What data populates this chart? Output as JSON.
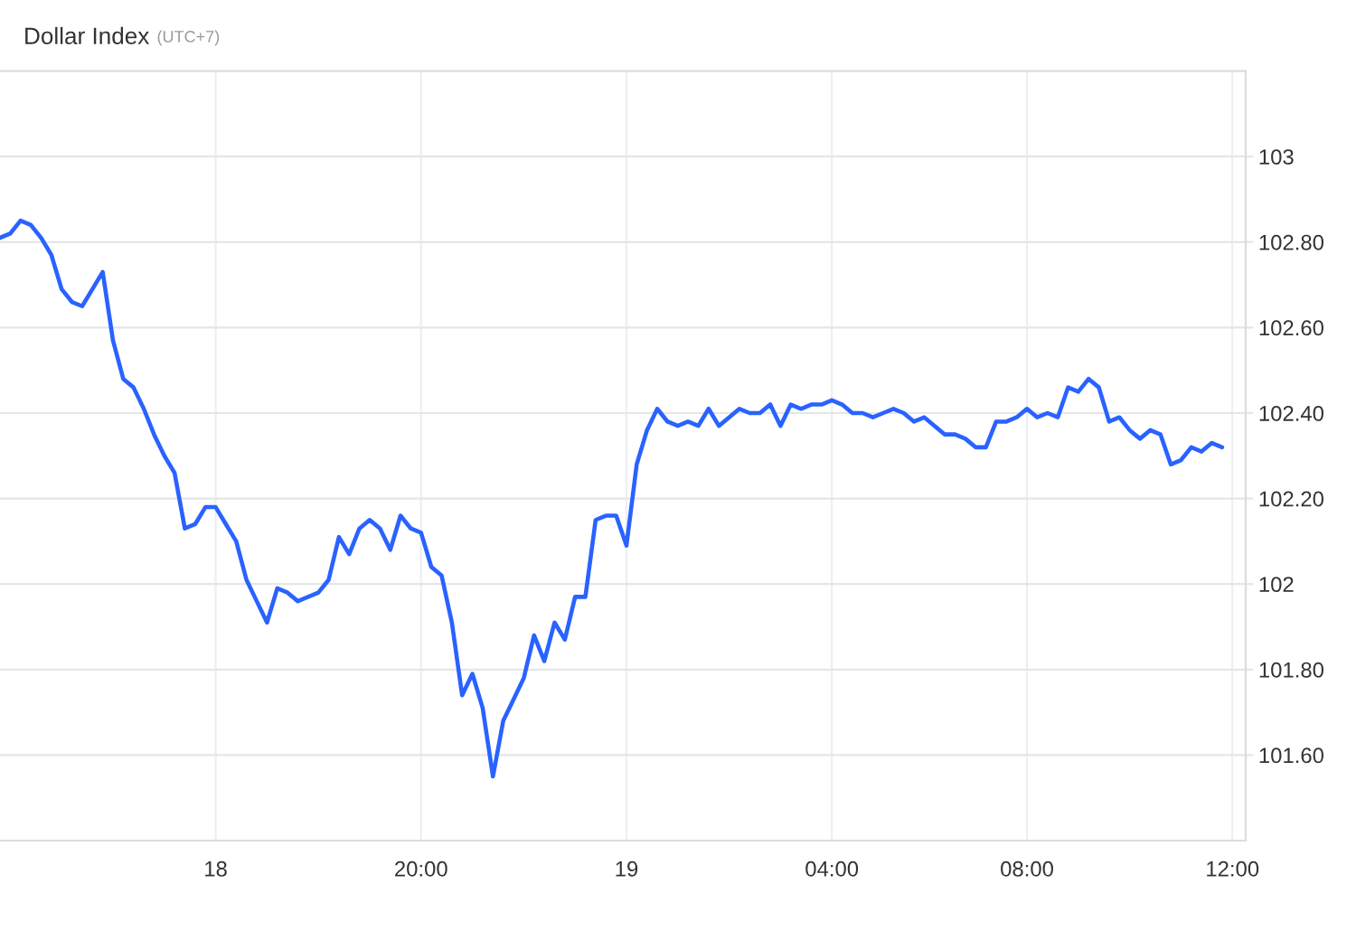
{
  "chart_data": {
    "type": "line",
    "title": "Dollar Index",
    "subtitle": "(UTC+7)",
    "categories": [
      null,
      null,
      null,
      null,
      null,
      null,
      null,
      null,
      null,
      null,
      null,
      null,
      null,
      null,
      null,
      null,
      null,
      null,
      null,
      null,
      null,
      "18",
      null,
      null,
      null,
      null,
      null,
      null,
      null,
      null,
      null,
      null,
      null,
      null,
      null,
      null,
      null,
      null,
      null,
      null,
      null,
      "20:00",
      null,
      null,
      null,
      null,
      null,
      null,
      null,
      null,
      null,
      null,
      null,
      null,
      null,
      null,
      null,
      null,
      null,
      null,
      null,
      "19",
      null,
      null,
      null,
      null,
      null,
      null,
      null,
      null,
      null,
      null,
      null,
      null,
      null,
      null,
      null,
      null,
      null,
      null,
      null,
      "04:00",
      null,
      null,
      null,
      null,
      null,
      null,
      null,
      null,
      null,
      null,
      null,
      null,
      null,
      null,
      null,
      null,
      null,
      null,
      "08:00",
      null,
      null,
      null,
      null,
      null,
      null,
      null,
      null,
      null,
      null,
      null,
      null,
      null,
      null,
      null,
      null,
      null,
      null,
      null,
      "12:00"
    ],
    "values": [
      102.81,
      102.82,
      102.85,
      102.84,
      102.81,
      102.77,
      102.69,
      102.66,
      102.65,
      102.69,
      102.73,
      102.57,
      102.48,
      102.46,
      102.41,
      102.35,
      102.3,
      102.26,
      102.13,
      102.14,
      102.18,
      102.18,
      102.14,
      102.1,
      102.01,
      101.96,
      101.91,
      101.99,
      101.98,
      101.96,
      101.97,
      101.98,
      102.01,
      102.11,
      102.07,
      102.13,
      102.15,
      102.13,
      102.08,
      102.16,
      102.13,
      102.12,
      102.04,
      102.02,
      101.91,
      101.74,
      101.79,
      101.71,
      101.55,
      101.68,
      101.73,
      101.78,
      101.88,
      101.82,
      101.91,
      101.87,
      101.97,
      101.97,
      102.15,
      102.16,
      102.16,
      102.09,
      102.28,
      102.36,
      102.41,
      102.38,
      102.37,
      102.38,
      102.37,
      102.41,
      102.37,
      102.39,
      102.41,
      102.4,
      102.4,
      102.42,
      102.37,
      102.42,
      102.41,
      102.42,
      102.42,
      102.43,
      102.42,
      102.4,
      102.4,
      102.39,
      102.4,
      102.41,
      102.4,
      102.38,
      102.39,
      102.37,
      102.35,
      102.35,
      102.34,
      102.32,
      102.32,
      102.38,
      102.38,
      102.39,
      102.41,
      102.39,
      102.4,
      102.39,
      102.46,
      102.45,
      102.48,
      102.46,
      102.38,
      102.39,
      102.36,
      102.34,
      102.36,
      102.35,
      102.28,
      102.29,
      102.32,
      102.31,
      102.33,
      102.32,
      null
    ],
    "color": "#2962ff",
    "ylim": [
      101.4,
      103.2
    ],
    "yticks": [
      {
        "value": 101.6,
        "label": "101.60"
      },
      {
        "value": 101.8,
        "label": "101.80"
      },
      102,
      {
        "value": 102.2,
        "label": "102.20"
      },
      {
        "value": 102.4,
        "label": "102.40"
      },
      {
        "value": 102.6,
        "label": "102.60"
      },
      {
        "value": 102.8,
        "label": "102.80"
      },
      103
    ],
    "grid": true
  }
}
